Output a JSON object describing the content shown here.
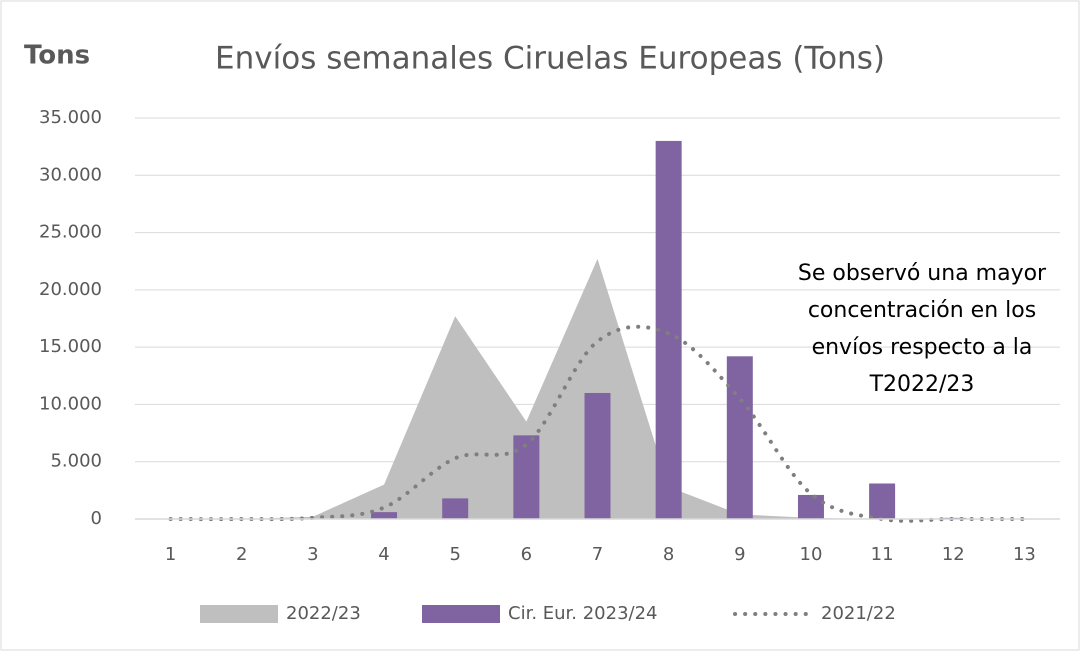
{
  "chart_data": {
    "type": "combo",
    "title": "Envíos semanales Ciruelas Europeas (Tons)",
    "y_label": "Tons",
    "annotation": [
      "Se observó una mayor",
      "concentración en los",
      "envíos respecto a la",
      "T2022/23"
    ],
    "categories": [
      "1",
      "2",
      "3",
      "4",
      "5",
      "6",
      "7",
      "8",
      "9",
      "10",
      "11",
      "12",
      "13"
    ],
    "series": [
      {
        "name": "2022/23",
        "type": "area",
        "color": "#bfbfbf",
        "values": [
          0,
          0,
          200,
          3000,
          17700,
          8500,
          22700,
          2800,
          400,
          100,
          0,
          0,
          0
        ]
      },
      {
        "name": "Cir. Eur. 2023/24",
        "type": "bar",
        "color": "#8064a2",
        "values": [
          0,
          0,
          0,
          600,
          1800,
          7300,
          11000,
          33000,
          14200,
          2100,
          3100,
          100,
          0
        ]
      },
      {
        "name": "2021/22",
        "type": "line",
        "color": "#7f7f7f",
        "values": [
          0,
          0,
          100,
          1000,
          5300,
          6500,
          15500,
          16200,
          10500,
          2200,
          0,
          0,
          0
        ]
      }
    ],
    "ylim": [
      0,
      35000
    ],
    "yticks": [
      0,
      {
        "value": 5000,
        "label": "5.000"
      },
      {
        "value": 10000,
        "label": "10.000"
      },
      {
        "value": 15000,
        "label": "15.000"
      },
      {
        "value": 20000,
        "label": "20.000"
      },
      {
        "value": 25000,
        "label": "25.000"
      },
      {
        "value": 30000,
        "label": "30.000"
      },
      {
        "value": 35000,
        "label": "35.000"
      }
    ],
    "grid": true,
    "legend": "bottom"
  }
}
